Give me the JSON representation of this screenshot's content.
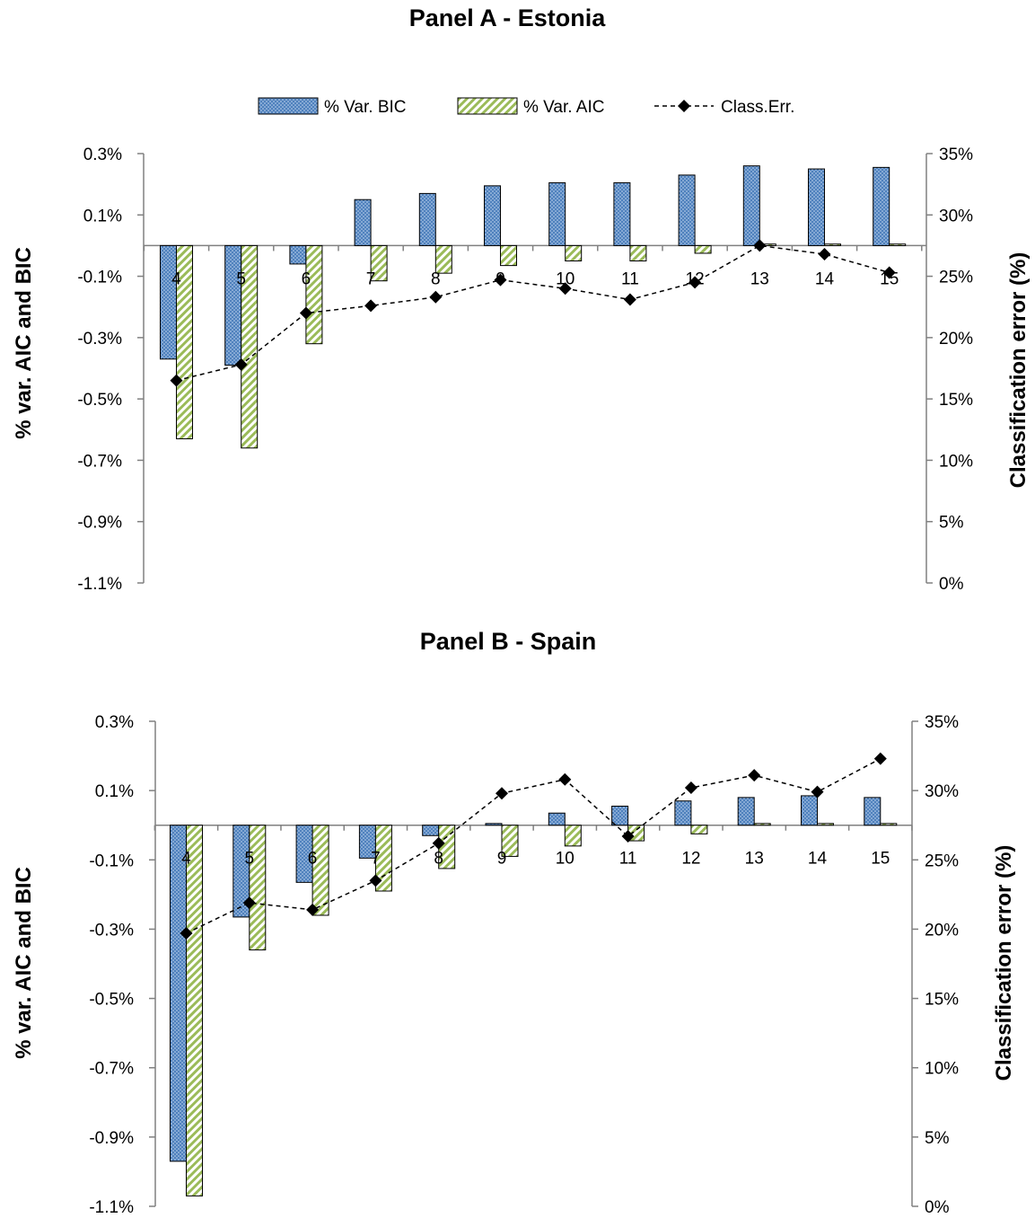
{
  "legend": {
    "bic_label": "% Var. BIC",
    "aic_label": "% Var. AIC",
    "err_label": "Class.Err.",
    "placement": "top"
  },
  "colors": {
    "bic_fill": "#4f81bd",
    "aic_fill": "#9bbb59",
    "axis": "#808080",
    "line": "#000000"
  },
  "chart_data": [
    {
      "type": "bar",
      "title": "Panel A - Estonia",
      "categories": [
        "4",
        "5",
        "6",
        "7",
        "8",
        "9",
        "10",
        "11",
        "12",
        "13",
        "14",
        "15"
      ],
      "series": [
        {
          "name": "% Var. BIC",
          "type": "bar",
          "axis": "left",
          "values": [
            -0.37,
            -0.39,
            -0.06,
            0.15,
            0.17,
            0.195,
            0.205,
            0.205,
            0.23,
            0.26,
            0.25,
            0.255
          ]
        },
        {
          "name": "% Var. AIC",
          "type": "bar",
          "axis": "left",
          "values": [
            -0.63,
            -0.66,
            -0.32,
            -0.115,
            -0.09,
            -0.065,
            -0.05,
            -0.05,
            -0.025,
            0.005,
            0.005,
            0.005
          ]
        },
        {
          "name": "Class.Err.",
          "type": "line",
          "axis": "right",
          "values": [
            16.5,
            17.8,
            22.0,
            22.6,
            23.3,
            24.7,
            24.0,
            23.1,
            24.5,
            27.5,
            26.8,
            25.3
          ]
        }
      ],
      "ylabel": "% var. AIC and BIC",
      "y2label": "Classification error (%)",
      "ylim": [
        -1.1,
        0.3
      ],
      "y2lim": [
        0,
        35
      ],
      "yticks": [
        "0.3%",
        "0.1%",
        "-0.1%",
        "-0.3%",
        "-0.5%",
        "-0.7%",
        "-0.9%",
        "-1.1%"
      ],
      "y2ticks": [
        "35%",
        "30%",
        "25%",
        "20%",
        "15%",
        "10%",
        "5%",
        "0%"
      ],
      "grid": false
    },
    {
      "type": "bar",
      "title": "Panel B - Spain",
      "categories": [
        "4",
        "5",
        "6",
        "7",
        "8",
        "9",
        "10",
        "11",
        "12",
        "13",
        "14",
        "15"
      ],
      "series": [
        {
          "name": "% Var. BIC",
          "type": "bar",
          "axis": "left",
          "values": [
            -0.97,
            -0.265,
            -0.165,
            -0.095,
            -0.03,
            0.005,
            0.035,
            0.055,
            0.07,
            0.08,
            0.085,
            0.08
          ]
        },
        {
          "name": "% Var. AIC",
          "type": "bar",
          "axis": "left",
          "values": [
            -1.07,
            -0.36,
            -0.26,
            -0.19,
            -0.125,
            -0.09,
            -0.06,
            -0.045,
            -0.025,
            0.005,
            0.005,
            0.005
          ]
        },
        {
          "name": "Class.Err.",
          "type": "line",
          "axis": "right",
          "values": [
            19.7,
            21.9,
            21.4,
            23.5,
            26.2,
            29.8,
            30.8,
            26.7,
            30.2,
            31.1,
            29.9,
            32.3
          ]
        }
      ],
      "ylabel": "% var. AIC and BIC",
      "y2label": "Classification error (%)",
      "ylim": [
        -1.1,
        0.3
      ],
      "y2lim": [
        0,
        35
      ],
      "yticks": [
        "0.3%",
        "0.1%",
        "-0.1%",
        "-0.3%",
        "-0.5%",
        "-0.7%",
        "-0.9%",
        "-1.1%"
      ],
      "y2ticks": [
        "35%",
        "30%",
        "25%",
        "20%",
        "15%",
        "10%",
        "5%",
        "0%"
      ],
      "grid": false
    }
  ]
}
